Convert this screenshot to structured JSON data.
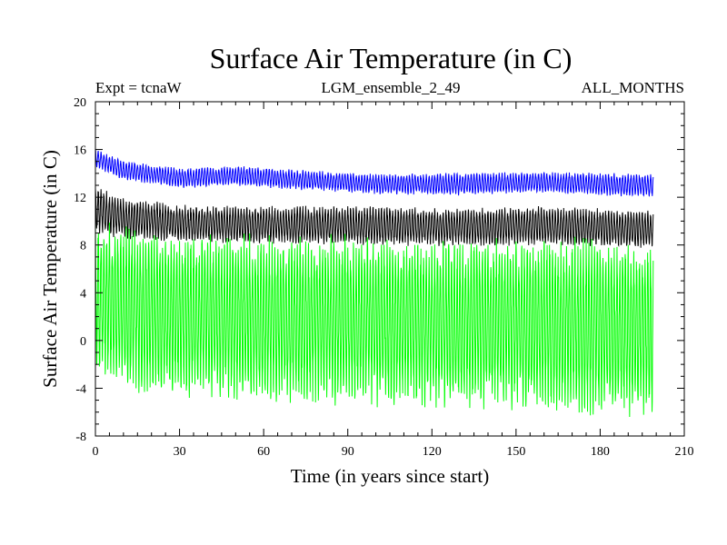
{
  "chart_data": {
    "type": "line",
    "title": "Surface Air Temperature (in C)",
    "subtitle_left": "Expt = tcnaW",
    "subtitle_center": "LGM_ensemble_2_49",
    "subtitle_right": "ALL_MONTHS",
    "xlabel": "Time (in years since start)",
    "ylabel": "Surface Air Temperature (in C)",
    "xlim": [
      0,
      210
    ],
    "ylim": [
      -8,
      20
    ],
    "xticks": [
      0,
      30,
      60,
      90,
      120,
      150,
      180,
      210
    ],
    "yticks": [
      -8,
      -4,
      0,
      4,
      8,
      12,
      16,
      20
    ],
    "grid": false,
    "series": [
      {
        "name": "blue",
        "color": "#0000ff",
        "description": "monthly oscillation band",
        "x_end": 199,
        "upper": [
          [
            0,
            16.0
          ],
          [
            10,
            15.0
          ],
          [
            30,
            14.4
          ],
          [
            50,
            14.6
          ],
          [
            70,
            14.3
          ],
          [
            100,
            13.9
          ],
          [
            130,
            14.0
          ],
          [
            160,
            14.1
          ],
          [
            199,
            13.9
          ]
        ],
        "lower": [
          [
            0,
            14.5
          ],
          [
            10,
            13.5
          ],
          [
            30,
            12.8
          ],
          [
            50,
            13.0
          ],
          [
            70,
            12.7
          ],
          [
            100,
            12.3
          ],
          [
            130,
            12.2
          ],
          [
            160,
            12.4
          ],
          [
            199,
            12.0
          ]
        ]
      },
      {
        "name": "black",
        "color": "#000000",
        "description": "monthly oscillation band",
        "x_end": 199,
        "upper": [
          [
            0,
            12.8
          ],
          [
            10,
            12.0
          ],
          [
            30,
            11.3
          ],
          [
            60,
            11.2
          ],
          [
            100,
            11.2
          ],
          [
            130,
            11.0
          ],
          [
            160,
            11.2
          ],
          [
            199,
            10.8
          ]
        ],
        "lower": [
          [
            0,
            9.0
          ],
          [
            10,
            8.6
          ],
          [
            30,
            8.3
          ],
          [
            60,
            8.2
          ],
          [
            100,
            8.0
          ],
          [
            130,
            8.0
          ],
          [
            160,
            8.0
          ],
          [
            199,
            7.8
          ]
        ]
      },
      {
        "name": "green",
        "color": "#00ff00",
        "description": "monthly oscillation band",
        "x_end": 199,
        "upper": [
          [
            0,
            9.8
          ],
          [
            10,
            9.2
          ],
          [
            30,
            8.6
          ],
          [
            60,
            8.6
          ],
          [
            100,
            8.5
          ],
          [
            130,
            8.3
          ],
          [
            160,
            8.4
          ],
          [
            199,
            8.0
          ]
        ],
        "lower": [
          [
            0,
            -2.5
          ],
          [
            10,
            -3.8
          ],
          [
            30,
            -4.6
          ],
          [
            60,
            -5.0
          ],
          [
            100,
            -5.2
          ],
          [
            130,
            -5.3
          ],
          [
            160,
            -5.6
          ],
          [
            199,
            -6.2
          ]
        ]
      }
    ]
  }
}
